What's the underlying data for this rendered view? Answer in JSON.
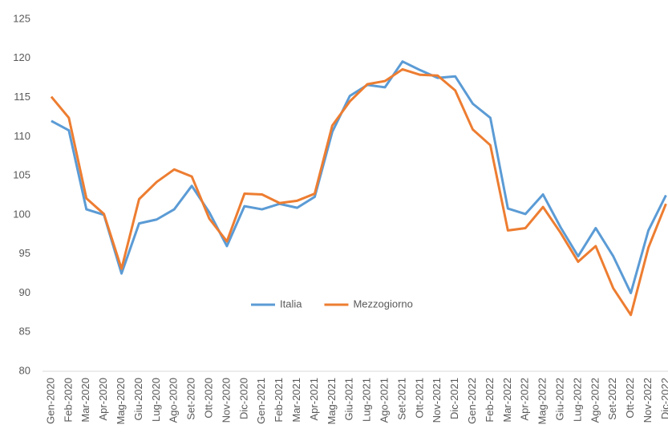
{
  "chart_data": {
    "type": "line",
    "categories": [
      "Gen-2020",
      "Feb-2020",
      "Mar-2020",
      "Apr-2020",
      "Mag-2020",
      "Giu-2020",
      "Lug-2020",
      "Ago-2020",
      "Set-2020",
      "Ott-2020",
      "Nov-2020",
      "Dic-2020",
      "Gen-2021",
      "Feb-2021",
      "Mar-2021",
      "Apr-2021",
      "Mag-2021",
      "Giu-2021",
      "Lug-2021",
      "Ago-2021",
      "Set-2021",
      "Ott-2021",
      "Nov-2021",
      "Dic-2021",
      "Gen-2022",
      "Feb-2022",
      "Mar-2022",
      "Apr-2022",
      "Mag-2022",
      "Giu-2022",
      "Lug-2022",
      "Ago-2022",
      "Set-2022",
      "Ott-2022",
      "Nov-2022",
      "Dic-2022"
    ],
    "series": [
      {
        "name": "Italia",
        "color": "#5b9bd5",
        "values": [
          112,
          110.8,
          100.7,
          100,
          92.5,
          98.9,
          99.4,
          100.7,
          103.7,
          100.3,
          96,
          101.1,
          100.7,
          101.4,
          100.9,
          102.3,
          110.6,
          115.2,
          116.6,
          116.3,
          119.6,
          118.5,
          117.5,
          117.7,
          114.2,
          112.4,
          100.8,
          100.1,
          102.6,
          98.4,
          94.7,
          98.3,
          94.7,
          90,
          98,
          102.5
        ]
      },
      {
        "name": "Mezzogiorno",
        "color": "#ed7d31",
        "values": [
          115.1,
          112.4,
          102.1,
          100.1,
          93.1,
          102,
          104.2,
          105.8,
          104.9,
          99.5,
          96.6,
          102.7,
          102.6,
          101.5,
          101.8,
          102.7,
          111.4,
          114.5,
          116.7,
          117.1,
          118.6,
          117.9,
          117.8,
          115.9,
          110.9,
          108.9,
          98,
          98.3,
          101,
          97.7,
          94,
          96,
          90.6,
          87.2,
          95.8,
          101.4
        ]
      }
    ],
    "ylim": [
      80,
      125
    ],
    "yticks": [
      80,
      85,
      90,
      95,
      100,
      105,
      110,
      115,
      120,
      125
    ],
    "grid": false,
    "legend": "center"
  }
}
